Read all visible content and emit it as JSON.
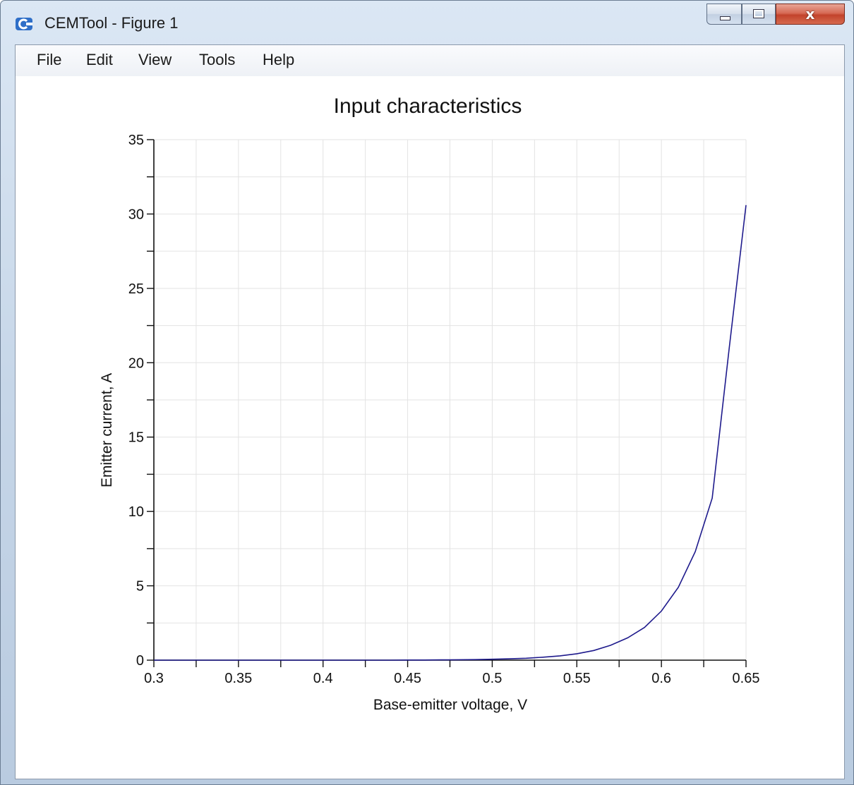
{
  "window": {
    "title": "CEMTool - Figure 1",
    "close_glyph": "x",
    "icons": {
      "app": "cemtool-app-icon",
      "minimize": "minimize-icon",
      "maximize": "maximize-icon",
      "close": "close-icon"
    }
  },
  "menu": {
    "items": [
      {
        "label": "File"
      },
      {
        "label": "Edit"
      },
      {
        "label": "View"
      },
      {
        "label": "Tools"
      },
      {
        "label": "Help"
      }
    ]
  },
  "chart_data": {
    "type": "line",
    "title": "Input characteristics",
    "xlabel": "Base-emitter voltage, V",
    "ylabel": "Emitter current, A",
    "xlim": [
      0.3,
      0.65
    ],
    "ylim": [
      0,
      35
    ],
    "xticks": [
      "0.3",
      "0.35",
      "0.4",
      "0.45",
      "0.5",
      "0.55",
      "0.6",
      "0.65"
    ],
    "yticks": [
      "0",
      "5",
      "10",
      "15",
      "20",
      "25",
      "30",
      "35"
    ],
    "grid": true,
    "series": [
      {
        "color": "#1e1a8c",
        "x": [
          0.3,
          0.31,
          0.32,
          0.33,
          0.34,
          0.35,
          0.36,
          0.37,
          0.38,
          0.39,
          0.4,
          0.41,
          0.42,
          0.43,
          0.44,
          0.45,
          0.46,
          0.47,
          0.48,
          0.49,
          0.5,
          0.51,
          0.52,
          0.53,
          0.54,
          0.55,
          0.56,
          0.57,
          0.58,
          0.59,
          0.6,
          0.61,
          0.62,
          0.63,
          0.64,
          0.65
        ],
        "values": [
          0.0,
          0.0,
          0.0,
          0.0,
          0.0,
          0.0,
          0.0,
          0.0,
          0.0,
          0.0,
          0.0,
          0.0,
          0.0,
          0.0,
          0.0,
          0.01,
          0.01,
          0.02,
          0.03,
          0.04,
          0.06,
          0.09,
          0.13,
          0.2,
          0.29,
          0.43,
          0.65,
          1.0,
          1.5,
          2.2,
          3.3,
          4.9,
          7.3,
          10.9,
          20.9,
          30.6
        ]
      }
    ]
  }
}
